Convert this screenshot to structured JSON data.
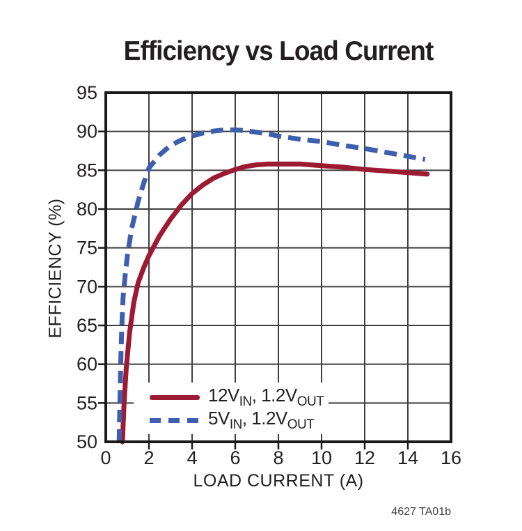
{
  "chart_data": {
    "type": "line",
    "title": "Efficiency vs Load Current",
    "xlabel": "LOAD CURRENT (A)",
    "ylabel": "EFFICIENCY (%)",
    "xlim": [
      0,
      16
    ],
    "ylim": [
      50,
      95
    ],
    "x_ticks": [
      0,
      2,
      4,
      6,
      8,
      10,
      12,
      14,
      16
    ],
    "y_ticks": [
      50,
      55,
      60,
      65,
      70,
      75,
      80,
      85,
      90,
      95
    ],
    "grid": true,
    "legend_position": "inside-bottom-left",
    "colors": {
      "grid": "#3F3F41",
      "frame": "#1A1A1A",
      "text": "#231F20",
      "background": "#FFFFFF"
    },
    "series": [
      {
        "name": "12VIN, 1.2VOUT",
        "color": "#9D1B32",
        "style": "solid",
        "points": [
          [
            0.77,
            50
          ],
          [
            0.85,
            55
          ],
          [
            0.95,
            59.5
          ],
          [
            1.1,
            64
          ],
          [
            1.3,
            68
          ],
          [
            1.5,
            70.5
          ],
          [
            1.75,
            72.4
          ],
          [
            2,
            74
          ],
          [
            2.5,
            76.6
          ],
          [
            3,
            78.7
          ],
          [
            3.5,
            80.5
          ],
          [
            4,
            82
          ],
          [
            4.5,
            83.1
          ],
          [
            5,
            84
          ],
          [
            5.5,
            84.6
          ],
          [
            6,
            85.1
          ],
          [
            6.5,
            85.5
          ],
          [
            7,
            85.7
          ],
          [
            7.5,
            85.8
          ],
          [
            8,
            85.8
          ],
          [
            9,
            85.8
          ],
          [
            10,
            85.6
          ],
          [
            11,
            85.4
          ],
          [
            12,
            85.1
          ],
          [
            13,
            84.9
          ],
          [
            14,
            84.7
          ],
          [
            14.9,
            84.5
          ]
        ]
      },
      {
        "name": "5VIN, 1.2VOUT",
        "color": "#3E5FAE",
        "style": "dashed",
        "points": [
          [
            0.62,
            50
          ],
          [
            0.66,
            56
          ],
          [
            0.7,
            61
          ],
          [
            0.75,
            65.5
          ],
          [
            0.8,
            68.5
          ],
          [
            0.9,
            71.5
          ],
          [
            1,
            74
          ],
          [
            1.2,
            77.5
          ],
          [
            1.5,
            81
          ],
          [
            1.75,
            83.3
          ],
          [
            2,
            85.3
          ],
          [
            2.5,
            87
          ],
          [
            3,
            88.2
          ],
          [
            3.5,
            88.9
          ],
          [
            4,
            89.4
          ],
          [
            4.5,
            89.8
          ],
          [
            5,
            90.05
          ],
          [
            5.5,
            90.2
          ],
          [
            6,
            90.2
          ],
          [
            6.5,
            90.1
          ],
          [
            7,
            89.9
          ],
          [
            7.5,
            89.7
          ],
          [
            8,
            89.4
          ],
          [
            9,
            89
          ],
          [
            10,
            88.7
          ],
          [
            11,
            88.2
          ],
          [
            12,
            87.8
          ],
          [
            13,
            87.3
          ],
          [
            14,
            86.8
          ],
          [
            14.8,
            86.4
          ]
        ]
      }
    ]
  },
  "legend": {
    "items": [
      {
        "p1": "12V",
        "s1": "IN",
        "p2": ", 1.2V",
        "s2": "OUT",
        "swatch": "solid",
        "color": "#9D1B32"
      },
      {
        "p1": "5V",
        "s1": "IN",
        "p2": ", 1.2V",
        "s2": "OUT",
        "swatch": "dashed",
        "color": "#3E5FAE"
      }
    ]
  },
  "caption": "4627 TA01b"
}
